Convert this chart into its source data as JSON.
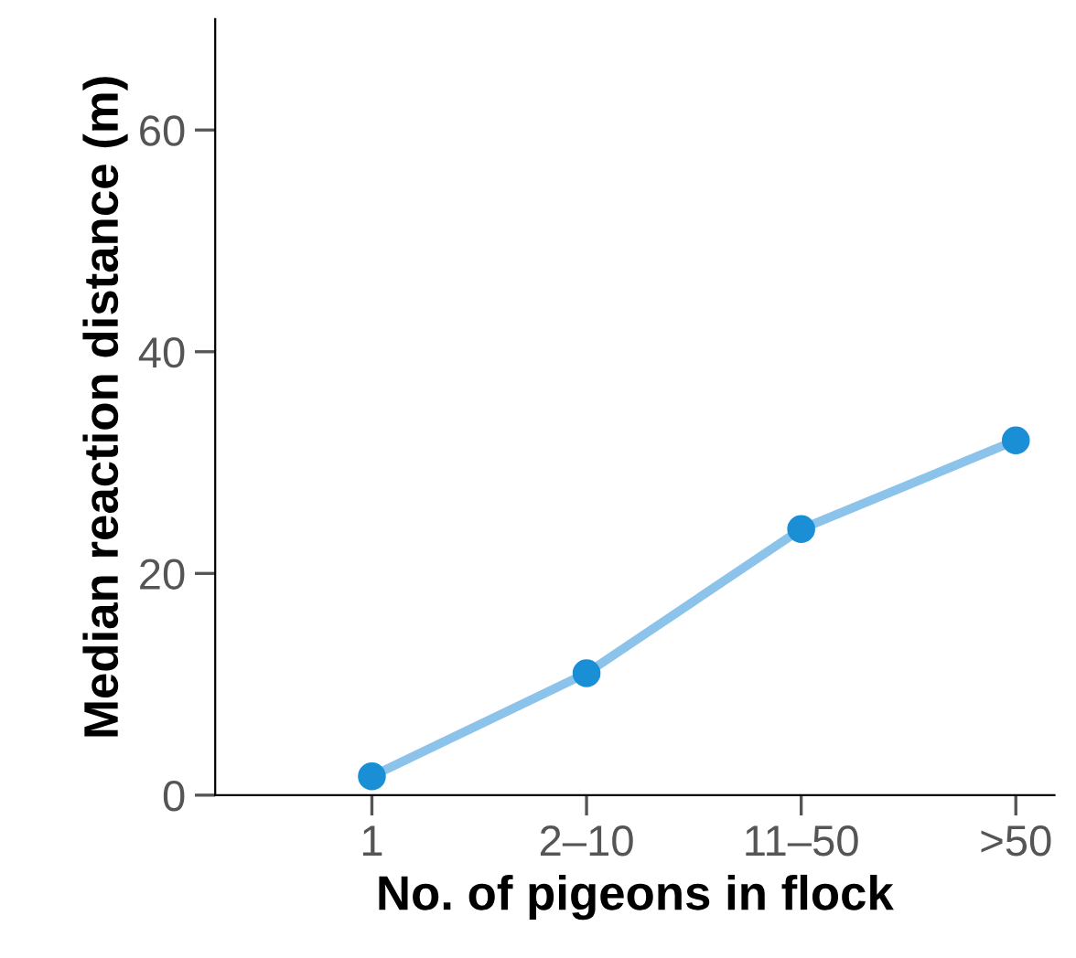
{
  "chart_data": {
    "type": "line",
    "xlabel": "No. of pigeons in flock",
    "ylabel": "Median reaction distance (m)",
    "categories": [
      "1",
      "2–10",
      "11–50",
      ">50"
    ],
    "series": [
      {
        "color": "#8cc3ea",
        "colors": [
          "#1a8fd6",
          "#1a8fd6",
          "#1a8fd6",
          "#1a8fd6"
        ],
        "values": [
          1.7,
          11,
          24,
          32
        ]
      }
    ],
    "marker": "circle",
    "ylim": [
      0,
      70
    ],
    "yticks": [
      0,
      20,
      40,
      60
    ],
    "grid": false,
    "legend": false
  }
}
